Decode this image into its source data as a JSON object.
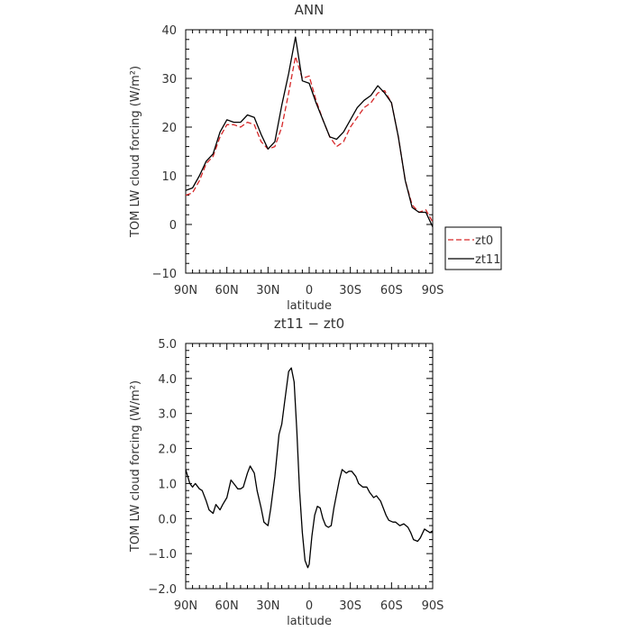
{
  "chart_data": [
    {
      "type": "line",
      "title": "ANN",
      "xlabel": "latitude",
      "ylabel": "TOM LW cloud forcing (W/m²)",
      "x_ticks": [
        "90N",
        "60N",
        "30N",
        "0",
        "30S",
        "60S",
        "90S"
      ],
      "x_tick_values": [
        90,
        60,
        30,
        0,
        -30,
        -60,
        -90
      ],
      "xlim": [
        90,
        -90
      ],
      "ylim": [
        -10,
        40
      ],
      "y_ticks": [
        "−10",
        "0",
        "10",
        "20",
        "30",
        "40"
      ],
      "y_tick_values": [
        -10,
        0,
        10,
        20,
        30,
        40
      ],
      "grid": false,
      "legend_position": "right",
      "series": [
        {
          "name": "zt0",
          "color": "#d62728",
          "dash": "dashed",
          "x": [
            90,
            85,
            80,
            75,
            70,
            65,
            60,
            55,
            50,
            45,
            40,
            35,
            30,
            25,
            20,
            15,
            10,
            5,
            0,
            -5,
            -10,
            -15,
            -20,
            -25,
            -30,
            -35,
            -40,
            -45,
            -50,
            -55,
            -60,
            -65,
            -70,
            -75,
            -80,
            -85,
            -90
          ],
          "y": [
            6,
            6.5,
            9,
            12.5,
            14,
            18,
            20.5,
            20.5,
            20,
            21,
            20.5,
            17,
            15.5,
            16,
            20,
            27,
            34.5,
            30,
            30.5,
            25.5,
            21.5,
            18,
            16,
            17,
            20,
            22,
            24,
            25,
            27,
            27.5,
            25,
            18,
            9,
            4,
            2.5,
            3,
            0.5
          ]
        },
        {
          "name": "zt11",
          "color": "#000000",
          "dash": "solid",
          "x": [
            90,
            85,
            80,
            75,
            70,
            65,
            60,
            55,
            50,
            45,
            40,
            35,
            30,
            25,
            20,
            15,
            10,
            5,
            0,
            -5,
            -10,
            -15,
            -20,
            -25,
            -30,
            -35,
            -40,
            -45,
            -50,
            -55,
            -60,
            -65,
            -70,
            -75,
            -80,
            -85,
            -90
          ],
          "y": [
            7,
            7.5,
            10,
            13,
            14.5,
            19,
            21.5,
            21,
            21,
            22.5,
            22,
            18.5,
            15.5,
            17,
            24.5,
            31,
            38.5,
            29.5,
            29,
            25,
            21.5,
            18,
            17.5,
            19,
            21.5,
            24,
            25.5,
            26.5,
            28.5,
            27,
            25,
            18,
            9,
            3.5,
            2.5,
            2.5,
            -0.5
          ]
        }
      ]
    },
    {
      "type": "line",
      "title": "zt11 − zt0",
      "xlabel": "latitude",
      "ylabel": "TOM LW cloud forcing (W/m²)",
      "x_ticks": [
        "90N",
        "60N",
        "30N",
        "0",
        "30S",
        "60S",
        "90S"
      ],
      "x_tick_values": [
        90,
        60,
        30,
        0,
        -30,
        -60,
        -90
      ],
      "xlim": [
        90,
        -90
      ],
      "ylim": [
        -2.0,
        5.0
      ],
      "y_ticks": [
        "−2.0",
        "−1.0",
        "0.0",
        "1.0",
        "2.0",
        "3.0",
        "4.0",
        "5.0"
      ],
      "y_tick_values": [
        -2,
        -1,
        0,
        1,
        2,
        3,
        4,
        5
      ],
      "grid": false,
      "series": [
        {
          "color": "#000000",
          "x": [
            90,
            87,
            85,
            83,
            80,
            78,
            75,
            73,
            70,
            68,
            65,
            63,
            60,
            57,
            55,
            52,
            50,
            48,
            45,
            43,
            40,
            38,
            35,
            33,
            30,
            28,
            25,
            22,
            20,
            18,
            15,
            13,
            11,
            9,
            7,
            5,
            3,
            1,
            0,
            -2,
            -4,
            -6,
            -8,
            -10,
            -12,
            -14,
            -16,
            -18,
            -20,
            -22,
            -24,
            -27,
            -29,
            -31,
            -34,
            -36,
            -39,
            -42,
            -44,
            -47,
            -49,
            -52,
            -54,
            -56,
            -58,
            -61,
            -63,
            -66,
            -69,
            -72,
            -74,
            -76,
            -79,
            -81,
            -84,
            -86,
            -88,
            -90
          ],
          "y": [
            1.4,
            1.0,
            0.9,
            1.0,
            0.85,
            0.8,
            0.5,
            0.25,
            0.15,
            0.4,
            0.25,
            0.4,
            0.6,
            1.1,
            1.0,
            0.85,
            0.85,
            0.9,
            1.3,
            1.5,
            1.3,
            0.8,
            0.3,
            -0.1,
            -0.2,
            0.3,
            1.2,
            2.4,
            2.7,
            3.3,
            4.2,
            4.3,
            3.9,
            2.5,
            0.8,
            -0.4,
            -1.2,
            -1.4,
            -1.3,
            -0.5,
            0.1,
            0.35,
            0.3,
            0.0,
            -0.2,
            -0.25,
            -0.2,
            0.3,
            0.7,
            1.1,
            1.4,
            1.3,
            1.35,
            1.35,
            1.2,
            1.0,
            0.9,
            0.9,
            0.75,
            0.6,
            0.65,
            0.5,
            0.3,
            0.1,
            -0.05,
            -0.1,
            -0.1,
            -0.2,
            -0.15,
            -0.25,
            -0.4,
            -0.6,
            -0.65,
            -0.55,
            -0.3,
            -0.35,
            -0.4,
            -0.35
          ]
        }
      ]
    }
  ]
}
